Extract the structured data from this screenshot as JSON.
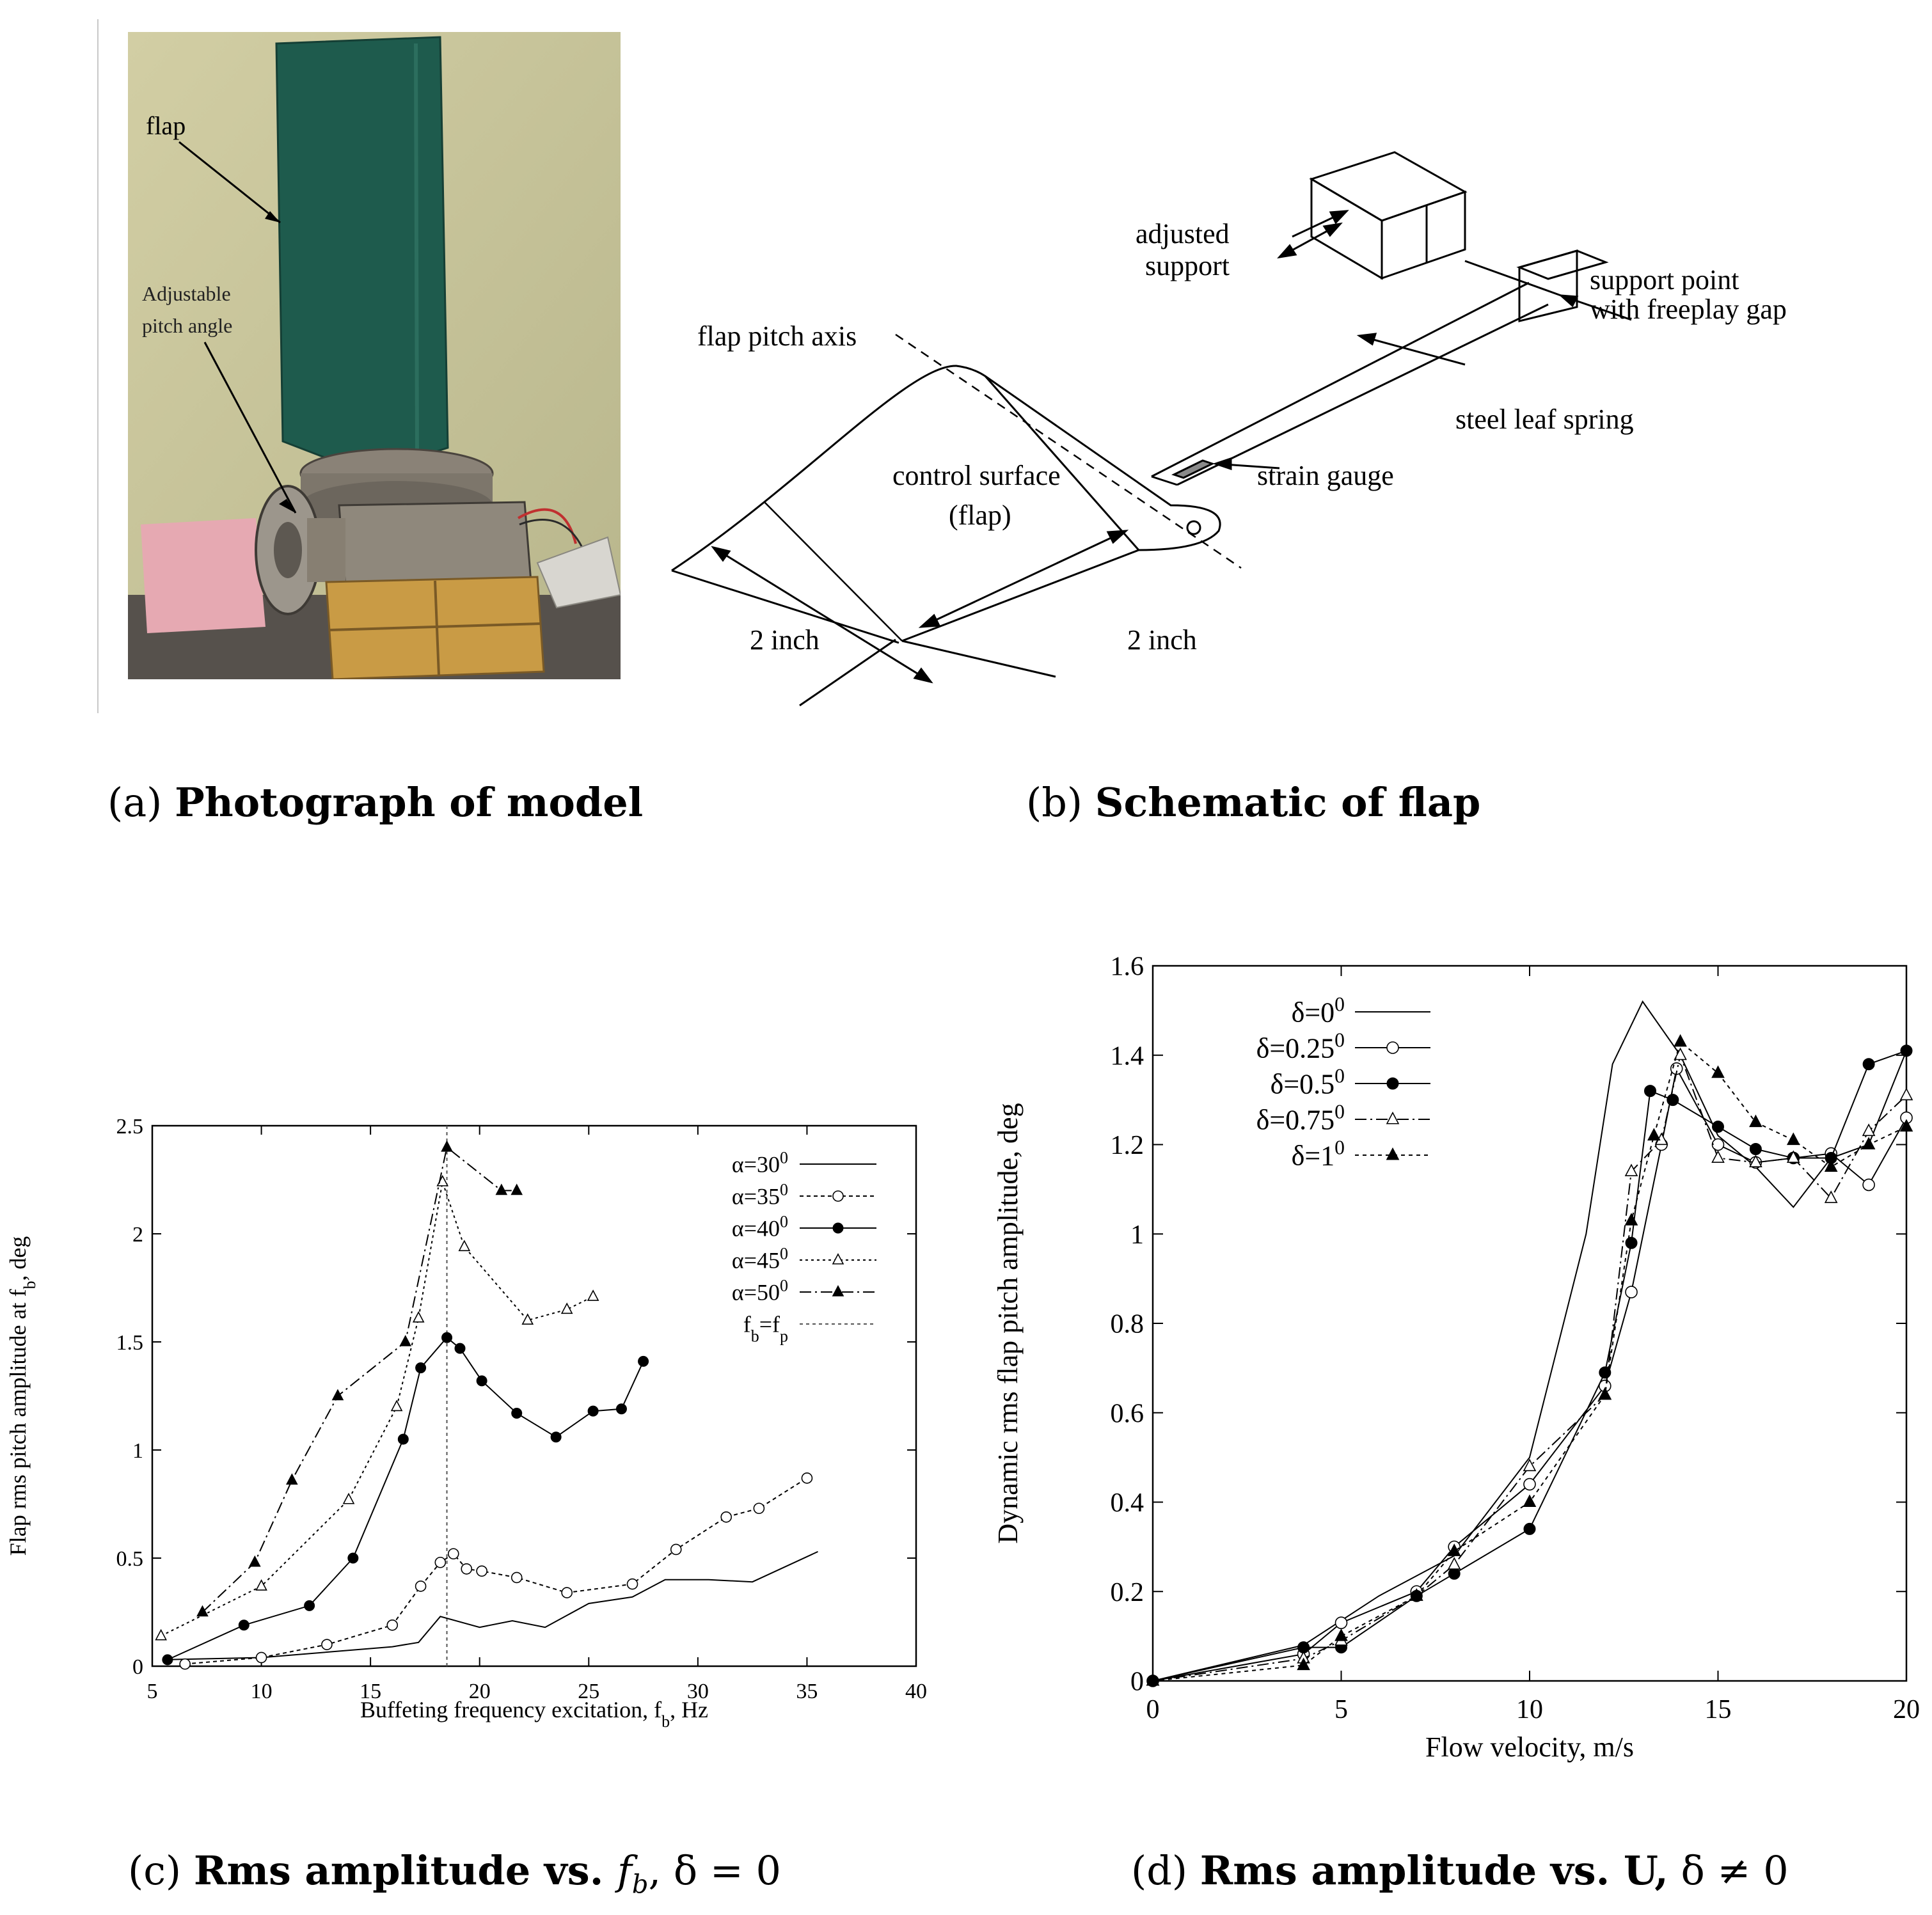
{
  "captions": {
    "a": {
      "prefix": "(a) ",
      "bold": "Photograph of model"
    },
    "b": {
      "prefix": "(b) ",
      "bold": "Schematic of flap"
    },
    "c": {
      "prefix": "(c) ",
      "bold": "Rms amplitude vs. ",
      "math": "f",
      "sub": "b",
      "tail": ", δ = 0"
    },
    "d": {
      "prefix": "(d) ",
      "bold": "Rms amplitude vs. U,",
      "tail": " δ ≠ 0"
    }
  },
  "photo": {
    "label_flap": "flap",
    "label_pitch_1": "Adjustable",
    "label_pitch_2": "pitch angle",
    "colors": {
      "wall": "#c9c59a",
      "flap": "#1f5a4c",
      "wood": "#c89a44",
      "metal": "#9a9186",
      "bench": "#5a5550",
      "pink": "#e8a8b0"
    }
  },
  "schematic": {
    "adjusted": "adjusted",
    "support": "support",
    "support_point": "support point",
    "freeplay": "with freeplay gap",
    "pitch_axis": "flap pitch axis",
    "leaf_spring": "steel leaf spring",
    "strain_gauge": "strain gauge",
    "control_surface": "control surface",
    "flap_paren": "(flap)",
    "dim1": "2 inch",
    "dim2": "2 inch"
  },
  "chart_data": [
    {
      "type": "line",
      "xlabel": "Buffeting frequency excitation, f",
      "xlabel_sub": "b",
      "xlabel_tail": ", Hz",
      "ylabel": "Flap rms pitch amplitude at f",
      "ylabel_sub": "b",
      "ylabel_tail": ", deg",
      "xlim": [
        5,
        40
      ],
      "ylim": [
        0,
        2.5
      ],
      "xticks": [
        5,
        10,
        15,
        20,
        25,
        30,
        35,
        40
      ],
      "yticks": [
        0,
        0.5,
        1,
        1.5,
        2,
        2.5
      ],
      "ytick_labels": [
        "0",
        "0.5",
        "1",
        "1.5",
        "2",
        "2.5"
      ],
      "legend_position": "top-right",
      "vline": {
        "x": 18.5,
        "name": "f",
        "name_sub": "b",
        "name_eq": "=f",
        "name_sub2": "p"
      },
      "series": [
        {
          "name": "α=30",
          "sup": "0",
          "marker": "none",
          "dash": "",
          "points": [
            [
              5.5,
              0.03
            ],
            [
              10,
              0.04
            ],
            [
              16,
              0.09
            ],
            [
              17.2,
              0.11
            ],
            [
              18.2,
              0.23
            ],
            [
              20,
              0.18
            ],
            [
              21.5,
              0.21
            ],
            [
              23,
              0.18
            ],
            [
              25,
              0.29
            ],
            [
              27,
              0.32
            ],
            [
              28.5,
              0.4
            ],
            [
              30.5,
              0.4
            ],
            [
              32.5,
              0.39
            ],
            [
              35.5,
              0.53
            ]
          ]
        },
        {
          "name": "α=35",
          "sup": "0",
          "marker": "open-circle",
          "dash": "6,5",
          "points": [
            [
              6.5,
              0.01
            ],
            [
              10,
              0.04
            ],
            [
              13,
              0.1
            ],
            [
              16,
              0.19
            ],
            [
              17.3,
              0.37
            ],
            [
              18.2,
              0.48
            ],
            [
              18.8,
              0.52
            ],
            [
              19.4,
              0.45
            ],
            [
              20.1,
              0.44
            ],
            [
              21.7,
              0.41
            ],
            [
              24,
              0.34
            ],
            [
              27,
              0.38
            ],
            [
              29,
              0.54
            ],
            [
              31.3,
              0.69
            ],
            [
              32.8,
              0.73
            ],
            [
              35,
              0.87
            ]
          ]
        },
        {
          "name": "α=40",
          "sup": "0",
          "marker": "filled-circle",
          "dash": "",
          "points": [
            [
              5.7,
              0.03
            ],
            [
              9.2,
              0.19
            ],
            [
              12.2,
              0.28
            ],
            [
              14.2,
              0.5
            ],
            [
              16.5,
              1.05
            ],
            [
              17.3,
              1.38
            ],
            [
              18.5,
              1.52
            ],
            [
              19.1,
              1.47
            ],
            [
              20.1,
              1.32
            ],
            [
              21.7,
              1.17
            ],
            [
              23.5,
              1.06
            ],
            [
              25.2,
              1.18
            ],
            [
              26.5,
              1.19
            ],
            [
              27.5,
              1.41
            ]
          ]
        },
        {
          "name": "α=45",
          "sup": "0",
          "marker": "open-triangle",
          "dash": "4,5",
          "points": [
            [
              5.4,
              0.14
            ],
            [
              10,
              0.37
            ],
            [
              14,
              0.77
            ],
            [
              16.2,
              1.2
            ],
            [
              17.2,
              1.61
            ],
            [
              18.3,
              2.24
            ],
            [
              19.3,
              1.94
            ],
            [
              22.2,
              1.6
            ],
            [
              24,
              1.65
            ],
            [
              25.2,
              1.71
            ]
          ]
        },
        {
          "name": "α=50",
          "sup": "0",
          "marker": "filled-triangle",
          "dash": "18,6,3,6",
          "points": [
            [
              7.3,
              0.25
            ],
            [
              9.7,
              0.48
            ],
            [
              11.4,
              0.86
            ],
            [
              13.5,
              1.25
            ],
            [
              16.6,
              1.5
            ],
            [
              18.5,
              2.4
            ],
            [
              21,
              2.2
            ],
            [
              21.7,
              2.2
            ]
          ]
        }
      ]
    },
    {
      "type": "line",
      "xlabel": "Flow velocity, m/s",
      "ylabel": "Dynamic rms flap pitch amplitude, deg",
      "xlim": [
        0,
        20
      ],
      "ylim": [
        0,
        1.6
      ],
      "xticks": [
        0,
        5,
        10,
        15,
        20
      ],
      "yticks": [
        0,
        0.2,
        0.4,
        0.6,
        0.8,
        1,
        1.2,
        1.4,
        1.6
      ],
      "ytick_labels": [
        "0",
        "0.2",
        "0.4",
        "0.6",
        "0.8",
        "1",
        "1.2",
        "1.4",
        "1.6"
      ],
      "legend_position": "top-left",
      "series": [
        {
          "name": "δ=0",
          "sup": "0",
          "marker": "none",
          "dash": "",
          "points": [
            [
              0,
              0
            ],
            [
              4,
              0.08
            ],
            [
              6,
              0.19
            ],
            [
              8,
              0.28
            ],
            [
              10,
              0.5
            ],
            [
              11.5,
              1.0
            ],
            [
              12.2,
              1.38
            ],
            [
              13,
              1.52
            ],
            [
              14,
              1.4
            ],
            [
              15,
              1.22
            ],
            [
              16,
              1.15
            ],
            [
              17,
              1.06
            ],
            [
              18,
              1.17
            ],
            [
              19,
              1.2
            ],
            [
              20,
              1.41
            ]
          ]
        },
        {
          "name": "δ=0.25",
          "sup": "0",
          "marker": "open-circle",
          "dash": "",
          "points": [
            [
              0,
              0
            ],
            [
              4,
              0.06
            ],
            [
              5,
              0.13
            ],
            [
              7,
              0.2
            ],
            [
              8,
              0.3
            ],
            [
              10,
              0.44
            ],
            [
              12,
              0.66
            ],
            [
              12.7,
              0.87
            ],
            [
              13.5,
              1.2
            ],
            [
              13.9,
              1.37
            ],
            [
              15,
              1.2
            ],
            [
              16,
              1.16
            ],
            [
              17,
              1.17
            ],
            [
              18,
              1.18
            ],
            [
              19,
              1.11
            ],
            [
              20,
              1.26
            ]
          ]
        },
        {
          "name": "δ=0.5",
          "sup": "0",
          "marker": "filled-circle",
          "dash": "",
          "points": [
            [
              0,
              0
            ],
            [
              4,
              0.075
            ],
            [
              5,
              0.075
            ],
            [
              7,
              0.19
            ],
            [
              8,
              0.24
            ],
            [
              10,
              0.34
            ],
            [
              12,
              0.69
            ],
            [
              12.7,
              0.98
            ],
            [
              13.2,
              1.32
            ],
            [
              13.8,
              1.3
            ],
            [
              15,
              1.24
            ],
            [
              16,
              1.19
            ],
            [
              17,
              1.17
            ],
            [
              18,
              1.17
            ],
            [
              19,
              1.38
            ],
            [
              20,
              1.41
            ]
          ]
        },
        {
          "name": "δ=0.75",
          "sup": "0",
          "marker": "open-triangle",
          "dash": "18,6,3,6",
          "points": [
            [
              0,
              0
            ],
            [
              4,
              0.05
            ],
            [
              5,
              0.09
            ],
            [
              7,
              0.19
            ],
            [
              8,
              0.26
            ],
            [
              10,
              0.48
            ],
            [
              12,
              0.64
            ],
            [
              12.7,
              1.14
            ],
            [
              13.5,
              1.21
            ],
            [
              14,
              1.4
            ],
            [
              15,
              1.17
            ],
            [
              16,
              1.16
            ],
            [
              17,
              1.17
            ],
            [
              18,
              1.08
            ],
            [
              19,
              1.23
            ],
            [
              20,
              1.31
            ]
          ]
        },
        {
          "name": "δ=1",
          "sup": "0",
          "marker": "filled-triangle",
          "dash": "6,6",
          "points": [
            [
              0,
              0
            ],
            [
              4,
              0.035
            ],
            [
              5,
              0.1
            ],
            [
              7,
              0.19
            ],
            [
              8,
              0.29
            ],
            [
              10,
              0.4
            ],
            [
              12,
              0.64
            ],
            [
              12.7,
              1.03
            ],
            [
              13.3,
              1.22
            ],
            [
              14,
              1.43
            ],
            [
              15,
              1.36
            ],
            [
              16,
              1.25
            ],
            [
              17,
              1.21
            ],
            [
              18,
              1.15
            ],
            [
              19,
              1.2
            ],
            [
              20,
              1.24
            ]
          ]
        }
      ]
    }
  ]
}
